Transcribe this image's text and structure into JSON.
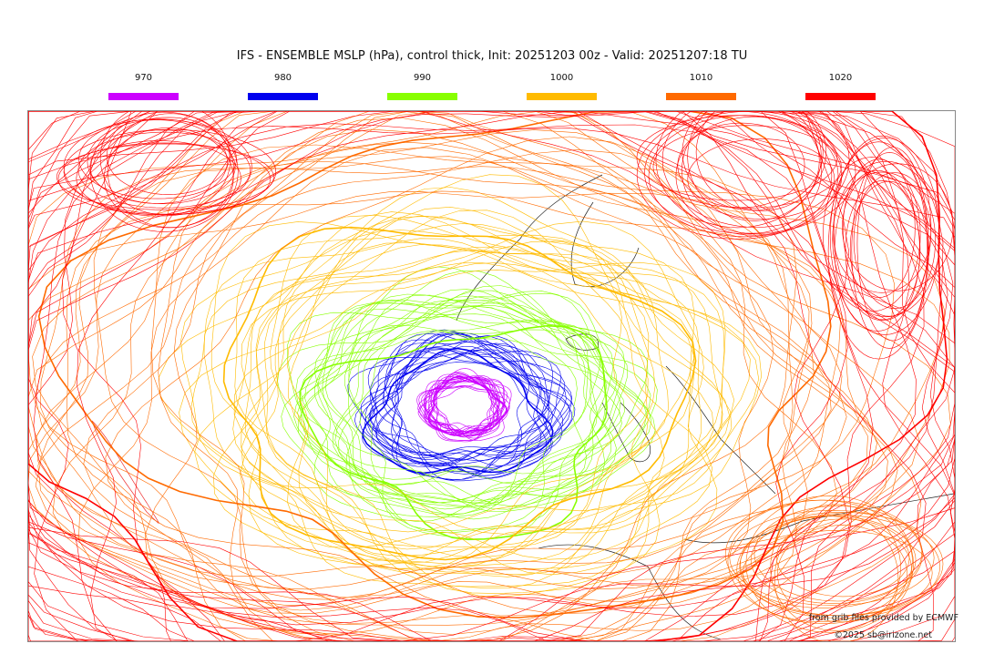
{
  "title": "IFS - ENSEMBLE MSLP (hPa), control thick, Init: 20251203 00z - Valid: 20251207:18 TU",
  "legend": [
    {
      "label": "970",
      "color": "#cc00ff"
    },
    {
      "label": "980",
      "color": "#0000ee"
    },
    {
      "label": "990",
      "color": "#88ff00"
    },
    {
      "label": "1000",
      "color": "#ffbb00"
    },
    {
      "label": "1010",
      "color": "#ff6a00"
    },
    {
      "label": "1020",
      "color": "#ff0000"
    }
  ],
  "credits": {
    "source": "from grib files provided by ECMWF",
    "copyright": "©2025 sb@irizone.net"
  }
}
